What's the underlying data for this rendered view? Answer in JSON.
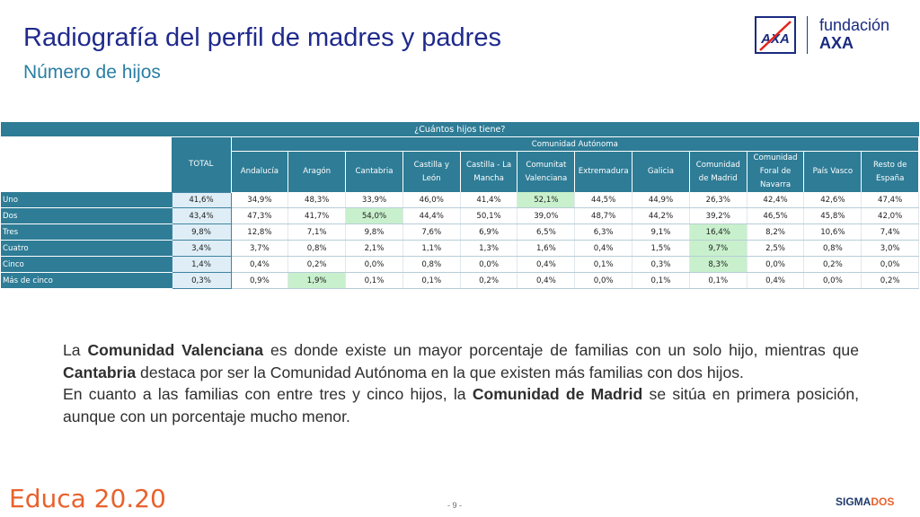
{
  "header": {
    "title": "Radiografía del perfil de madres y padres",
    "subtitle": "Número de hijos"
  },
  "logo": {
    "line1": "fundación",
    "line2": "AXA",
    "mark": "AXA",
    "brand_color": "#1a2b80",
    "accent_color": "#e2231a"
  },
  "table": {
    "question": "¿Cuántos hijos tiene?",
    "total_label": "TOTAL",
    "group_label": "Comunidad Autónoma",
    "columns": [
      "Andalucía",
      "Aragón",
      "Cantabria",
      "Castilla y León",
      "Castilla - La Mancha",
      "Comunitat Valenciana",
      "Extremadura",
      "Galicia",
      "Comunidad de Madrid",
      "Comunidad Foral de Navarra",
      "País Vasco",
      "Resto de España"
    ],
    "rows": [
      {
        "label": "Uno",
        "total": "41,6%",
        "values": [
          "34,9%",
          "48,3%",
          "33,9%",
          "46,0%",
          "41,4%",
          "52,1%",
          "44,5%",
          "44,9%",
          "26,3%",
          "42,4%",
          "42,6%",
          "47,4%"
        ],
        "highlight": 5
      },
      {
        "label": "Dos",
        "total": "43,4%",
        "values": [
          "47,3%",
          "41,7%",
          "54,0%",
          "44,4%",
          "50,1%",
          "39,0%",
          "48,7%",
          "44,2%",
          "39,2%",
          "46,5%",
          "45,8%",
          "42,0%"
        ],
        "highlight": 2
      },
      {
        "label": "Tres",
        "total": "9,8%",
        "values": [
          "12,8%",
          "7,1%",
          "9,8%",
          "7,6%",
          "6,9%",
          "6,5%",
          "6,3%",
          "9,1%",
          "16,4%",
          "8,2%",
          "10,6%",
          "7,4%"
        ],
        "highlight": 8
      },
      {
        "label": "Cuatro",
        "total": "3,4%",
        "values": [
          "3,7%",
          "0,8%",
          "2,1%",
          "1,1%",
          "1,3%",
          "1,6%",
          "0,4%",
          "1,5%",
          "9,7%",
          "2,5%",
          "0,8%",
          "3,0%"
        ],
        "highlight": 8
      },
      {
        "label": "Cinco",
        "total": "1,4%",
        "values": [
          "0,4%",
          "0,2%",
          "0,0%",
          "0,8%",
          "0,0%",
          "0,4%",
          "0,1%",
          "0,3%",
          "8,3%",
          "0,0%",
          "0,2%",
          "0,0%"
        ],
        "highlight": 8
      },
      {
        "label": "Más de cinco",
        "total": "0,3%",
        "values": [
          "0,9%",
          "1,9%",
          "0,1%",
          "0,1%",
          "0,2%",
          "0,4%",
          "0,0%",
          "0,1%",
          "0,1%",
          "0,4%",
          "0,0%",
          "0,2%"
        ],
        "highlight": 1
      }
    ],
    "header_color": "#2e7c96",
    "highlight_color": "#c8f0cc"
  },
  "paragraph": {
    "p1": [
      {
        "text": "La ",
        "bold": false
      },
      {
        "text": "Comunidad Valenciana",
        "bold": true
      },
      {
        "text": " es donde existe un mayor porcentaje de familias con un solo hijo, mientras que ",
        "bold": false
      },
      {
        "text": "Cantabria",
        "bold": true
      },
      {
        "text": " destaca por ser la Comunidad Autónoma en la que existen más familias con dos hijos.",
        "bold": false
      }
    ],
    "p2": [
      {
        "text": "En cuanto a las familias con entre tres y cinco hijos, la ",
        "bold": false
      },
      {
        "text": "Comunidad de Madrid",
        "bold": true
      },
      {
        "text": " se sitúa en primera posición, aunque con un porcentaje mucho menor.",
        "bold": false
      }
    ]
  },
  "footer": {
    "educa": "Educa 20.20",
    "page": "- 9 -",
    "sigma_a": "SIGMA",
    "sigma_b": "DOS",
    "educa_color": "#e8612c"
  }
}
